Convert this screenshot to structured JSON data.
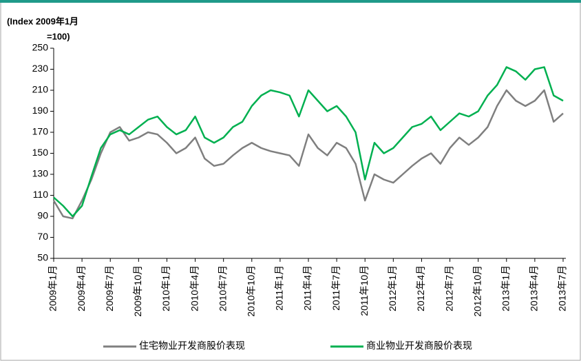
{
  "chart_data": {
    "type": "line",
    "y_axis_label": [
      "(Index 2009年1月",
      "=100)"
    ],
    "categories": [
      "2009年1月",
      null,
      null,
      "2009年4月",
      null,
      null,
      "2009年7月",
      null,
      null,
      "2009年10月",
      null,
      null,
      "2010年1月",
      null,
      null,
      "2010年4月",
      null,
      null,
      "2010年7月",
      null,
      null,
      "2010年10月",
      null,
      null,
      "2011年1月",
      null,
      null,
      "2011年4月",
      null,
      null,
      "2011年7月",
      null,
      null,
      "2011年10月",
      null,
      null,
      "2012年1月",
      null,
      null,
      "2012年4月",
      null,
      null,
      "2012年7月",
      null,
      null,
      "2012年10月",
      null,
      null,
      "2013年1月",
      null,
      null,
      "2013年4月",
      null,
      null,
      "2013年7月"
    ],
    "series": [
      {
        "name": "住宅物业开发商股价表现",
        "color": "#7f7f7f",
        "values": [
          105,
          90,
          88,
          105,
          125,
          150,
          170,
          175,
          162,
          165,
          170,
          168,
          160,
          150,
          155,
          165,
          145,
          138,
          140,
          148,
          155,
          160,
          155,
          152,
          150,
          148,
          138,
          168,
          155,
          148,
          160,
          155,
          140,
          105,
          130,
          125,
          122,
          130,
          138,
          145,
          150,
          140,
          155,
          165,
          158,
          165,
          175,
          195,
          210,
          200,
          195,
          200,
          210,
          180,
          188
        ]
      },
      {
        "name": "商业物业开发商股价表现",
        "color": "#00b050",
        "values": [
          108,
          100,
          90,
          100,
          128,
          155,
          168,
          172,
          168,
          175,
          182,
          185,
          175,
          168,
          172,
          185,
          165,
          160,
          165,
          175,
          180,
          195,
          205,
          210,
          208,
          205,
          185,
          210,
          200,
          190,
          195,
          185,
          170,
          125,
          160,
          150,
          155,
          165,
          175,
          178,
          185,
          172,
          180,
          188,
          185,
          190,
          205,
          215,
          232,
          228,
          220,
          230,
          232,
          205,
          200
        ]
      }
    ],
    "ylim": [
      50,
      250
    ],
    "yticks": [
      50,
      70,
      90,
      110,
      130,
      150,
      170,
      190,
      210,
      230,
      250
    ]
  }
}
